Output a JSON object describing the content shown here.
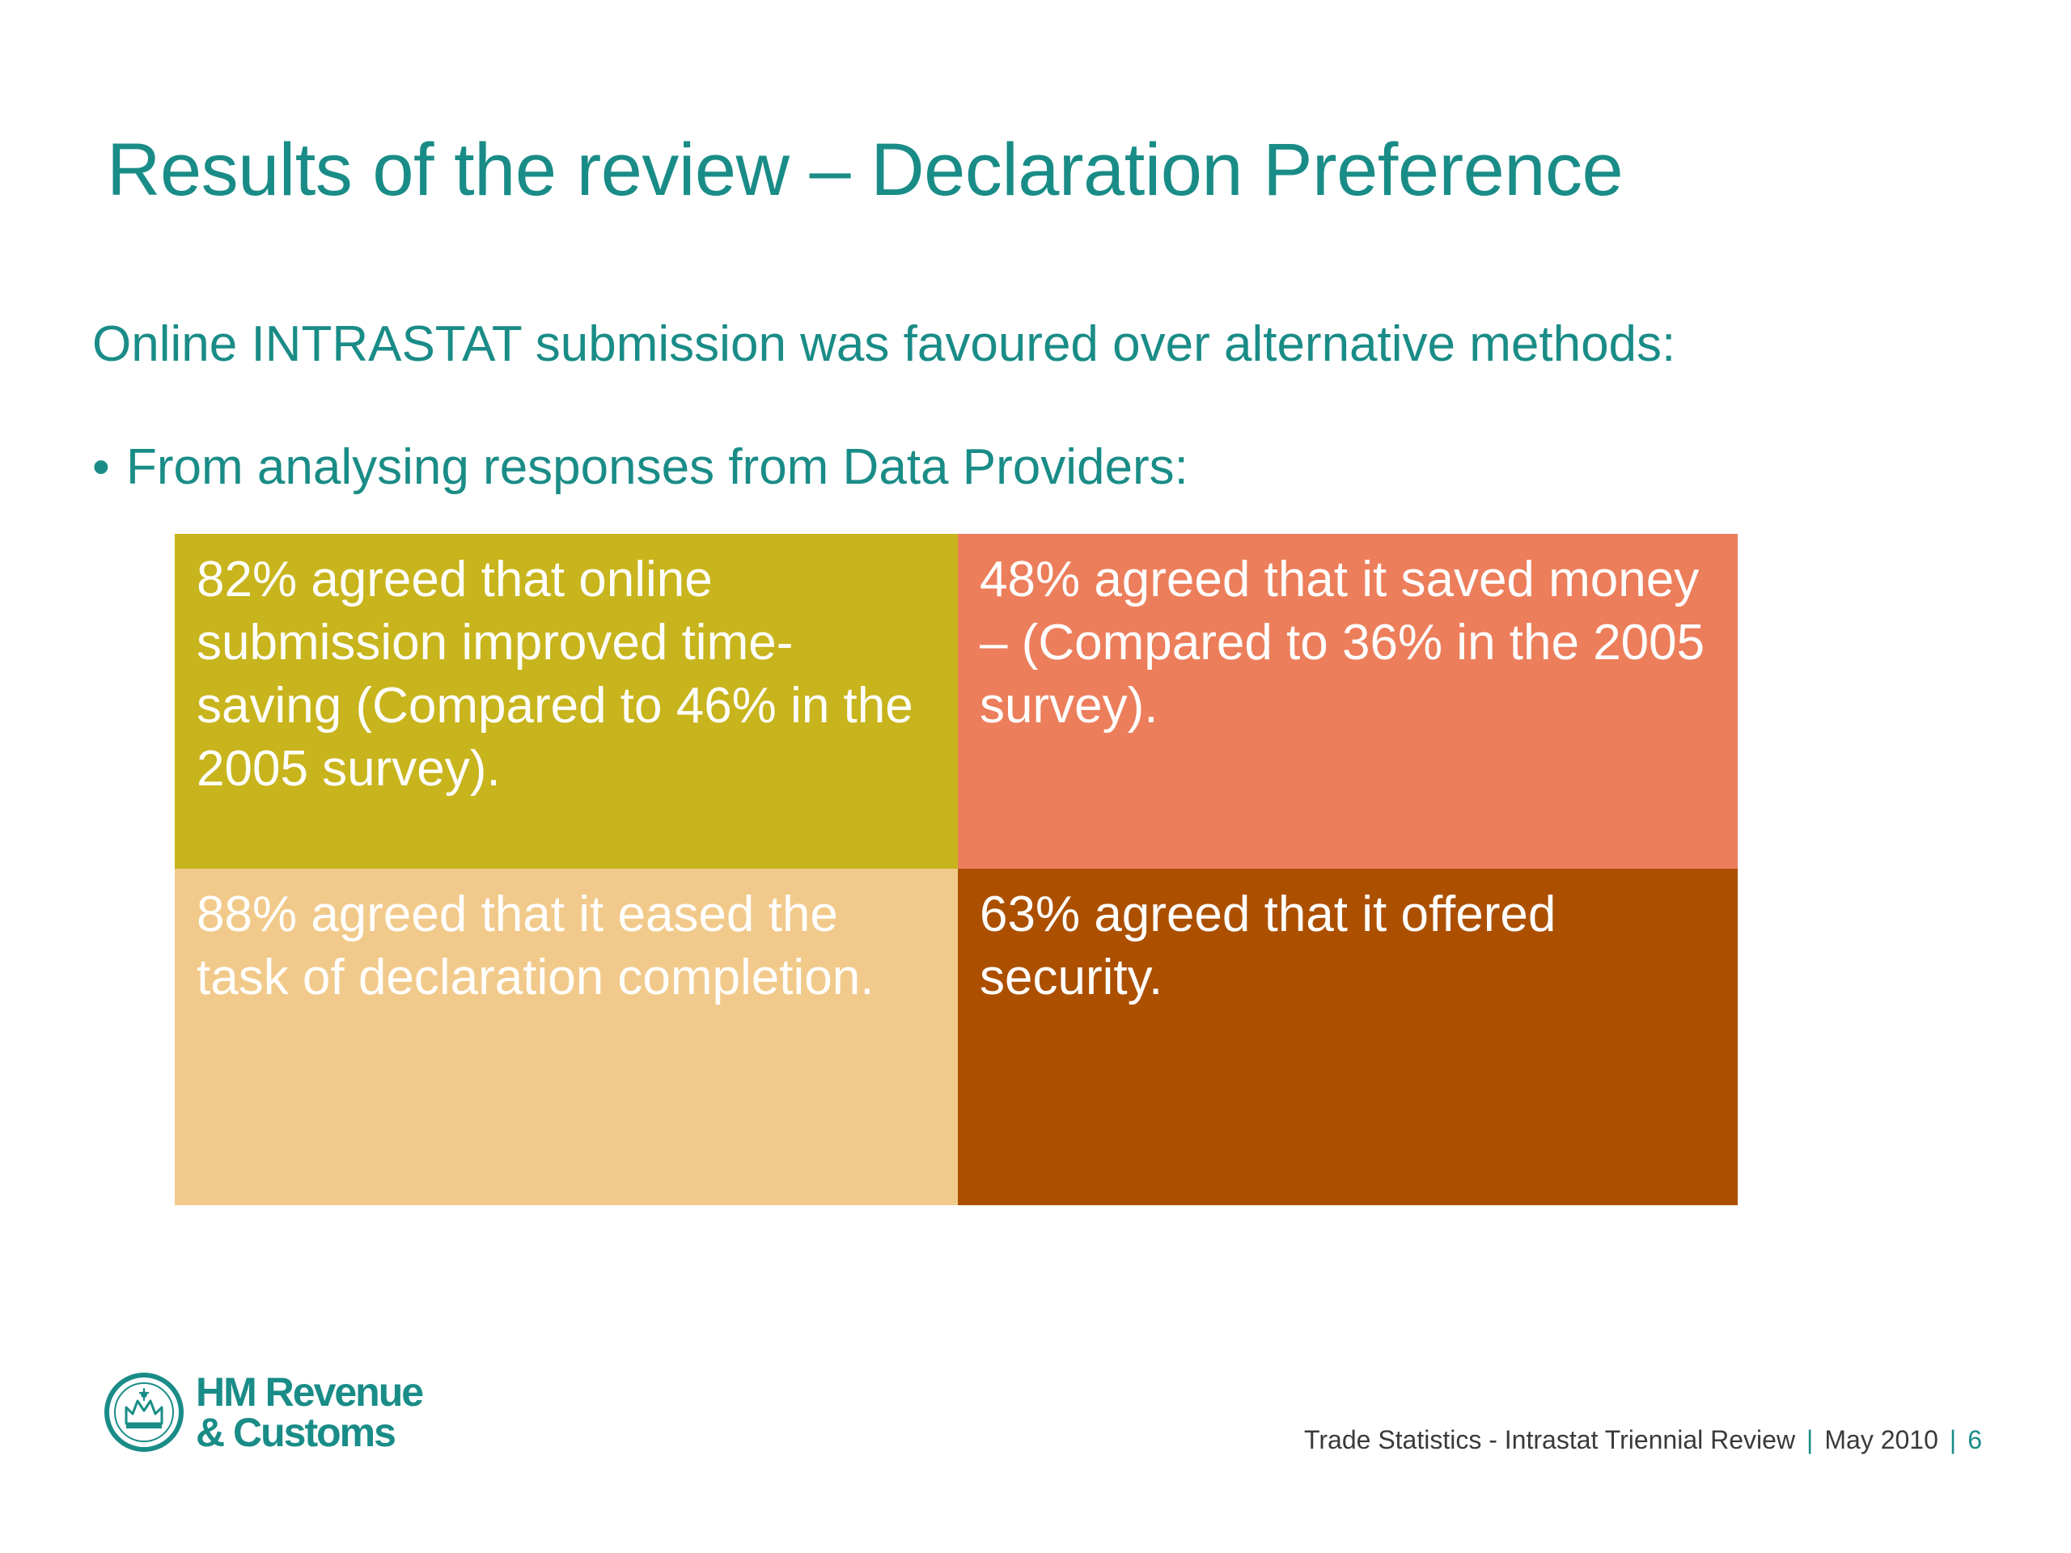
{
  "slide": {
    "title": "Results of the review – Declaration Preference",
    "subtitle": "Online INTRASTAT submission was favoured over alternative methods:",
    "bullet_marker": "•",
    "bullet": "From analysing responses from Data Providers:",
    "cells": [
      {
        "text": "82% agreed that online submission improved time-saving (Compared to 46% in the 2005 survey).",
        "color": "#c8b41c"
      },
      {
        "text": "48% agreed that it saved money – (Compared to 36% in the 2005 survey).",
        "color": "#ec7e5b"
      },
      {
        "text": "88% agreed that it eased the task of declaration completion.",
        "color": "#f1ca8b"
      },
      {
        "text": "63% agreed that it offered security.",
        "color": "#ac5000"
      }
    ]
  },
  "logo": {
    "line1": "HM Revenue",
    "line2": "& Customs",
    "icon": "crown-emblem-icon"
  },
  "footer": {
    "doc_title": "Trade Statistics - Intrastat Triennial Review",
    "separator": "|",
    "date": "May 2010",
    "page": "6"
  },
  "colors": {
    "accent": "#1a8c87"
  }
}
